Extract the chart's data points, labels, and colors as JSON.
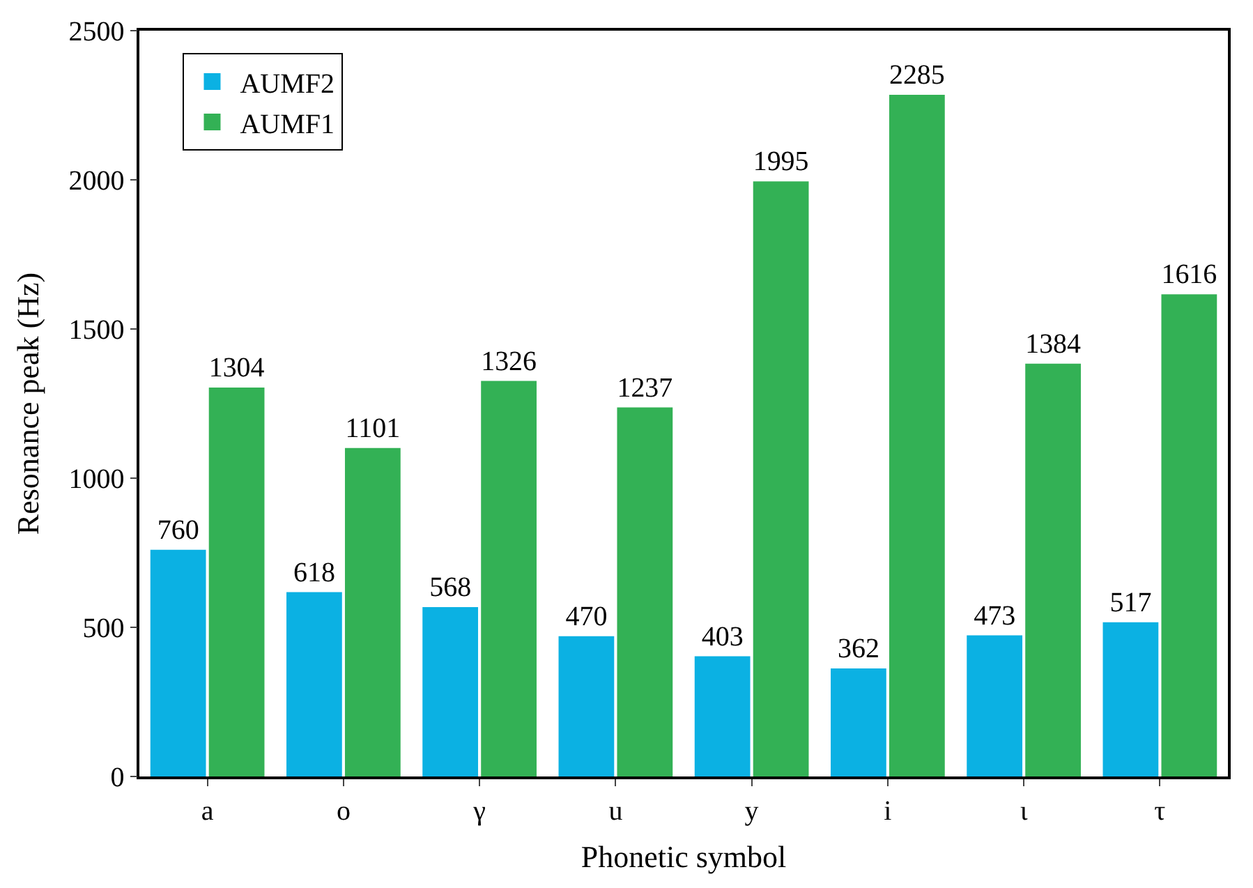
{
  "chart_data": {
    "type": "bar",
    "xlabel": "Phonetic symbol",
    "ylabel": "Resonance peak (Hz)",
    "categories": [
      "a",
      "o",
      "γ",
      "u",
      "y",
      "i",
      "ι",
      "τ"
    ],
    "series": [
      {
        "name": "AUMF2",
        "color": "#0bb1e3",
        "values": [
          760,
          618,
          568,
          470,
          403,
          362,
          473,
          517
        ]
      },
      {
        "name": "AUMF1",
        "color": "#33b155",
        "values": [
          1304,
          1101,
          1326,
          1237,
          1995,
          2285,
          1384,
          1616
        ]
      }
    ],
    "ylim": [
      0,
      2500
    ],
    "yticks": [
      0,
      500,
      1000,
      1500,
      2000,
      2500
    ],
    "data_labels": true,
    "legend": "top left"
  }
}
